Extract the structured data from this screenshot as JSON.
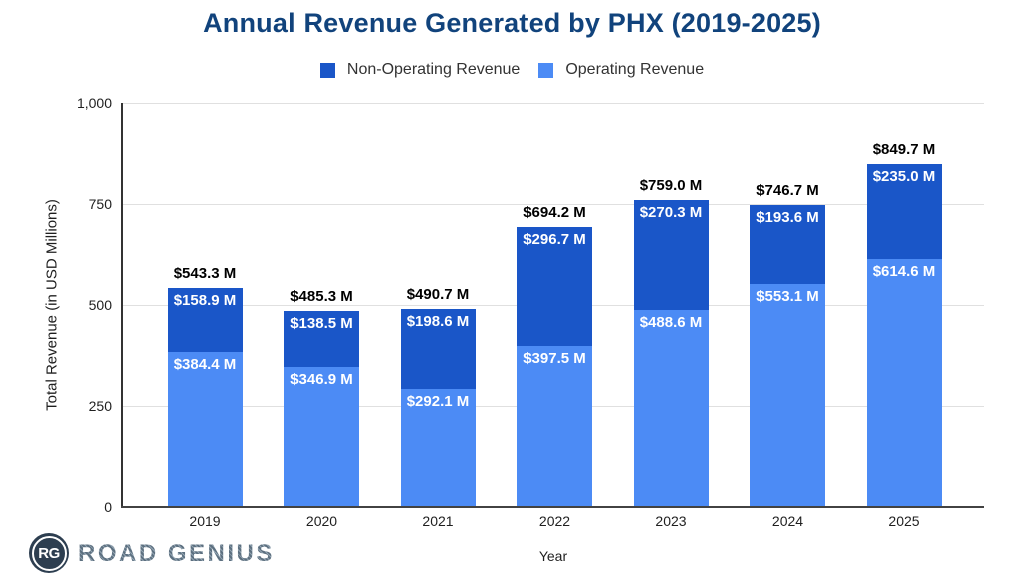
{
  "title": "Annual Revenue Generated by PHX (2019-2025)",
  "legend": {
    "items": [
      {
        "label": "Non-Operating Revenue",
        "color": "#1A56C8"
      },
      {
        "label": "Operating Revenue",
        "color": "#4C8BF5"
      }
    ]
  },
  "branding": {
    "logo_monogram": "RG",
    "logo_text": "ROAD GENIUS"
  },
  "colors": {
    "title": "#11437C",
    "non_operating": "#1A56C8",
    "operating": "#4C8BF5",
    "gridline": "#E0E0E0",
    "axis_line": "#333333"
  },
  "chart_data": {
    "type": "bar",
    "stacked": true,
    "title": "Annual Revenue Generated by PHX (2019-2025)",
    "xlabel": "Year",
    "ylabel": "Total Revenue (in USD Millions)",
    "ylim": [
      0,
      1000
    ],
    "grid": true,
    "legend_position": "top",
    "categories": [
      "2019",
      "2020",
      "2021",
      "2022",
      "2023",
      "2024",
      "2025"
    ],
    "series": [
      {
        "name": "Operating Revenue",
        "color": "#4C8BF5",
        "values": [
          384.4,
          346.9,
          292.1,
          397.5,
          488.6,
          553.1,
          614.6
        ],
        "value_labels": [
          "$384.4 M",
          "$346.9 M",
          "$292.1 M",
          "$397.5 M",
          "$488.6 M",
          "$553.1 M",
          "$614.6 M"
        ]
      },
      {
        "name": "Non-Operating Revenue",
        "color": "#1A56C8",
        "values": [
          158.9,
          138.5,
          198.6,
          296.7,
          270.3,
          193.6,
          235.0
        ],
        "value_labels": [
          "$158.9 M",
          "$138.5 M",
          "$198.6 M",
          "$296.7 M",
          "$270.3 M",
          "$193.6 M",
          "$235.0 M"
        ]
      }
    ],
    "totals": [
      543.3,
      485.3,
      490.7,
      694.2,
      759.0,
      746.7,
      849.7
    ],
    "total_labels": [
      "$543.3 M",
      "$485.3 M",
      "$490.7 M",
      "$694.2 M",
      "$759.0 M",
      "$746.7 M",
      "$849.7 M"
    ],
    "y_ticks": [
      {
        "value": 0,
        "label": "0"
      },
      {
        "value": 250,
        "label": "250"
      },
      {
        "value": 500,
        "label": "500"
      },
      {
        "value": 750,
        "label": "750"
      },
      {
        "value": 1000,
        "label": "1,000"
      }
    ]
  }
}
